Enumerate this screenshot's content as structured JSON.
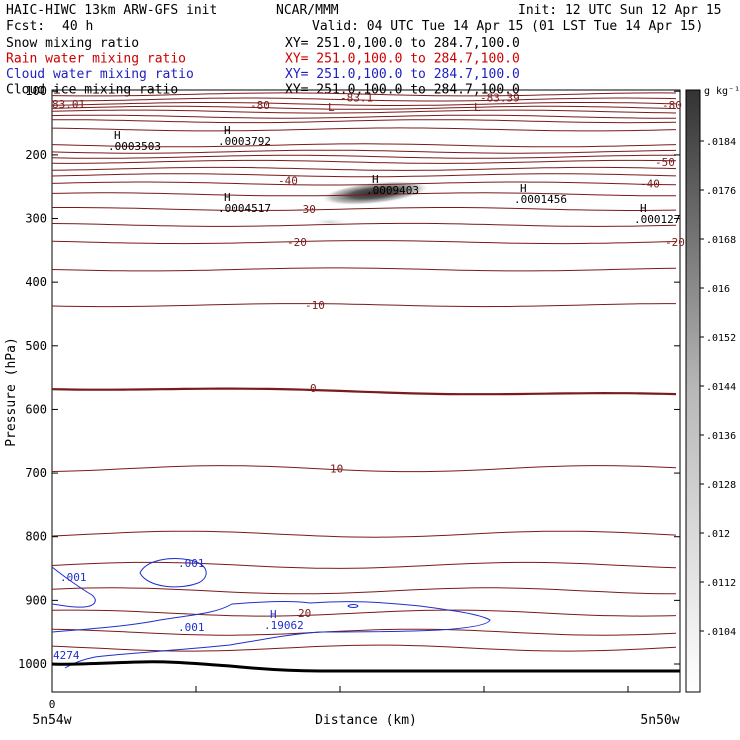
{
  "header": {
    "model": "HAIC-HIWC 13km ARW-GFS init",
    "org": "NCAR/MMM",
    "init": "Init: 12 UTC Sun 12 Apr 15",
    "fcst_label": "Fcst:",
    "fcst_value": "40 h",
    "valid": "Valid: 04 UTC Tue 14 Apr 15 (01 LST Tue 14 Apr 15)"
  },
  "legend": [
    {
      "name": "Snow mixing ratio",
      "xy": "XY= 251.0,100.0 to 284.7,100.0",
      "color": "#000000"
    },
    {
      "name": "Rain water mixing ratio",
      "xy": "XY= 251.0,100.0 to 284.7,100.0",
      "color": "#cc0000"
    },
    {
      "name": "Cloud water mixing ratio",
      "xy": "XY= 251.0,100.0 to 284.7,100.0",
      "color": "#1f1fbf"
    },
    {
      "name": "Cloud ice mixing ratio",
      "xy": "XY= 251.0,100.0 to 284.7,100.0",
      "color": "#000000"
    }
  ],
  "colors": {
    "temperature": "#7a1a1a",
    "cloud_water": "#1f2fd0",
    "terrain": "#000000",
    "shade_dark": "#333333"
  },
  "chart_data": {
    "type": "contour",
    "ylabel": "Pressure (hPa)",
    "xlabel": "Distance (km)",
    "y_ticks": [
      100,
      200,
      300,
      400,
      500,
      600,
      700,
      800,
      900,
      1000
    ],
    "x_ticks": [
      0
    ],
    "x_start_label": "5n54w",
    "x_end_label": "5n50w",
    "colorbar_unit": "g kg⁻¹",
    "colorbar_ticks": [
      ".0184",
      ".0176",
      ".0168",
      ".016",
      ".0152",
      ".0144",
      ".0136",
      ".0128",
      ".012",
      ".0112",
      ".0104"
    ],
    "temperature_contours": [
      {
        "label": "-83.1",
        "p": 110
      },
      {
        "label": "-83.39",
        "p": 110
      },
      {
        "label": "83.01",
        "p": 120
      },
      {
        "label": "-80",
        "p": 122
      },
      {
        "label": "-80",
        "p": 122
      },
      {
        "label": "-50",
        "p": 211
      },
      {
        "label": "-40",
        "p": 245
      },
      {
        "label": "-40",
        "p": 240
      },
      {
        "label": "-30",
        "p": 285
      },
      {
        "label": "-20",
        "p": 337
      },
      {
        "label": "-20",
        "p": 337
      },
      {
        "label": "-10",
        "p": 436
      },
      {
        "label": "0",
        "p": 566
      },
      {
        "label": "10",
        "p": 693
      },
      {
        "label": "20",
        "p": 920
      }
    ],
    "cloud_water_labels": [
      ".001",
      ".001",
      ".001",
      "4274"
    ],
    "extrema": [
      {
        "kind": "L",
        "value": "-83.1"
      },
      {
        "kind": "L",
        "value": "-83.39"
      },
      {
        "kind": "H",
        "value": ".0003503"
      },
      {
        "kind": "H",
        "value": ".0003792"
      },
      {
        "kind": "H",
        "value": ".0009403"
      },
      {
        "kind": "H",
        "value": ".0004517"
      },
      {
        "kind": "H",
        "value": ".0001456"
      },
      {
        "kind": "H",
        "value": ".000127"
      },
      {
        "kind": "H",
        "value": ".19062"
      }
    ]
  }
}
